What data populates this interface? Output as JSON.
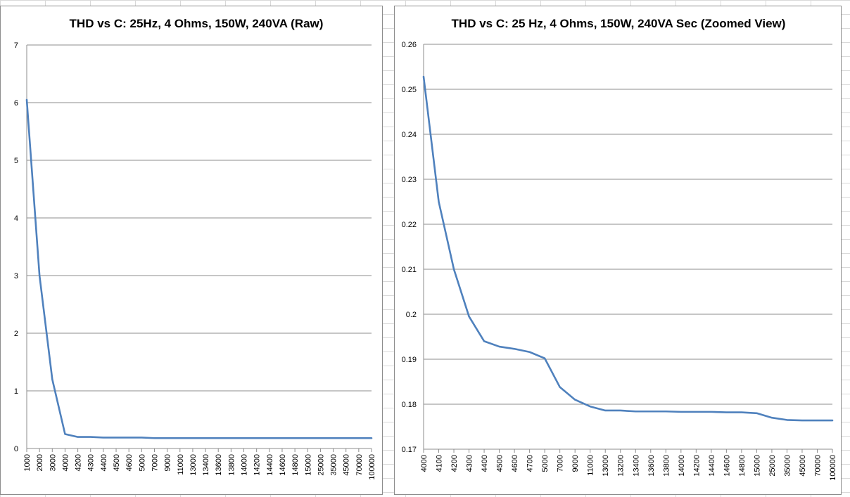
{
  "chart_data": [
    {
      "type": "line",
      "title": "THD vs C:   25Hz, 4 Ohms, 150W, 240VA (Raw)",
      "xlabel": "",
      "ylabel": "",
      "ylim": [
        0,
        7
      ],
      "yticks": [
        "0",
        "1",
        "2",
        "3",
        "4",
        "5",
        "6",
        "7"
      ],
      "grid": true,
      "legend": "none",
      "line_color": "#4f81bd",
      "categories": [
        "1000",
        "2000",
        "3000",
        "4000",
        "4200",
        "4300",
        "4400",
        "4500",
        "4600",
        "5000",
        "7000",
        "9000",
        "11000",
        "13000",
        "13400",
        "13600",
        "13800",
        "14000",
        "14200",
        "14400",
        "14600",
        "14800",
        "15000",
        "25000",
        "35000",
        "45000",
        "70000",
        "100000"
      ],
      "series": [
        {
          "name": "",
          "values": [
            6.05,
            3.0,
            1.2,
            0.25,
            0.2,
            0.2,
            0.19,
            0.19,
            0.19,
            0.19,
            0.18,
            0.18,
            0.18,
            0.18,
            0.18,
            0.18,
            0.18,
            0.18,
            0.18,
            0.18,
            0.18,
            0.18,
            0.18,
            0.18,
            0.18,
            0.18,
            0.18,
            0.18
          ]
        }
      ]
    },
    {
      "type": "line",
      "title": "THD vs C:   25 Hz, 4 Ohms, 150W, 240VA Sec (Zoomed View)",
      "xlabel": "",
      "ylabel": "",
      "ylim": [
        0.17,
        0.26
      ],
      "yticks": [
        "0.17",
        "0.18",
        "0.19",
        "0.2",
        "0.21",
        "0.22",
        "0.23",
        "0.24",
        "0.25",
        "0.26"
      ],
      "grid": true,
      "legend": "none",
      "line_color": "#4f81bd",
      "categories": [
        "4000",
        "4100",
        "4200",
        "4300",
        "4400",
        "4500",
        "4600",
        "4700",
        "5000",
        "7000",
        "9000",
        "11000",
        "13000",
        "13200",
        "13400",
        "13600",
        "13800",
        "14000",
        "14200",
        "14400",
        "14600",
        "14800",
        "15000",
        "25000",
        "35000",
        "45000",
        "70000",
        "100000"
      ],
      "series": [
        {
          "name": "",
          "values": [
            0.2528,
            0.225,
            0.21,
            0.1995,
            0.194,
            0.1928,
            0.1923,
            0.1916,
            0.1902,
            0.1838,
            0.181,
            0.1795,
            0.1786,
            0.1786,
            0.1784,
            0.1784,
            0.1784,
            0.1783,
            0.1783,
            0.1783,
            0.1782,
            0.1782,
            0.178,
            0.177,
            0.1765,
            0.1764,
            0.1764,
            0.1764
          ]
        }
      ]
    }
  ]
}
